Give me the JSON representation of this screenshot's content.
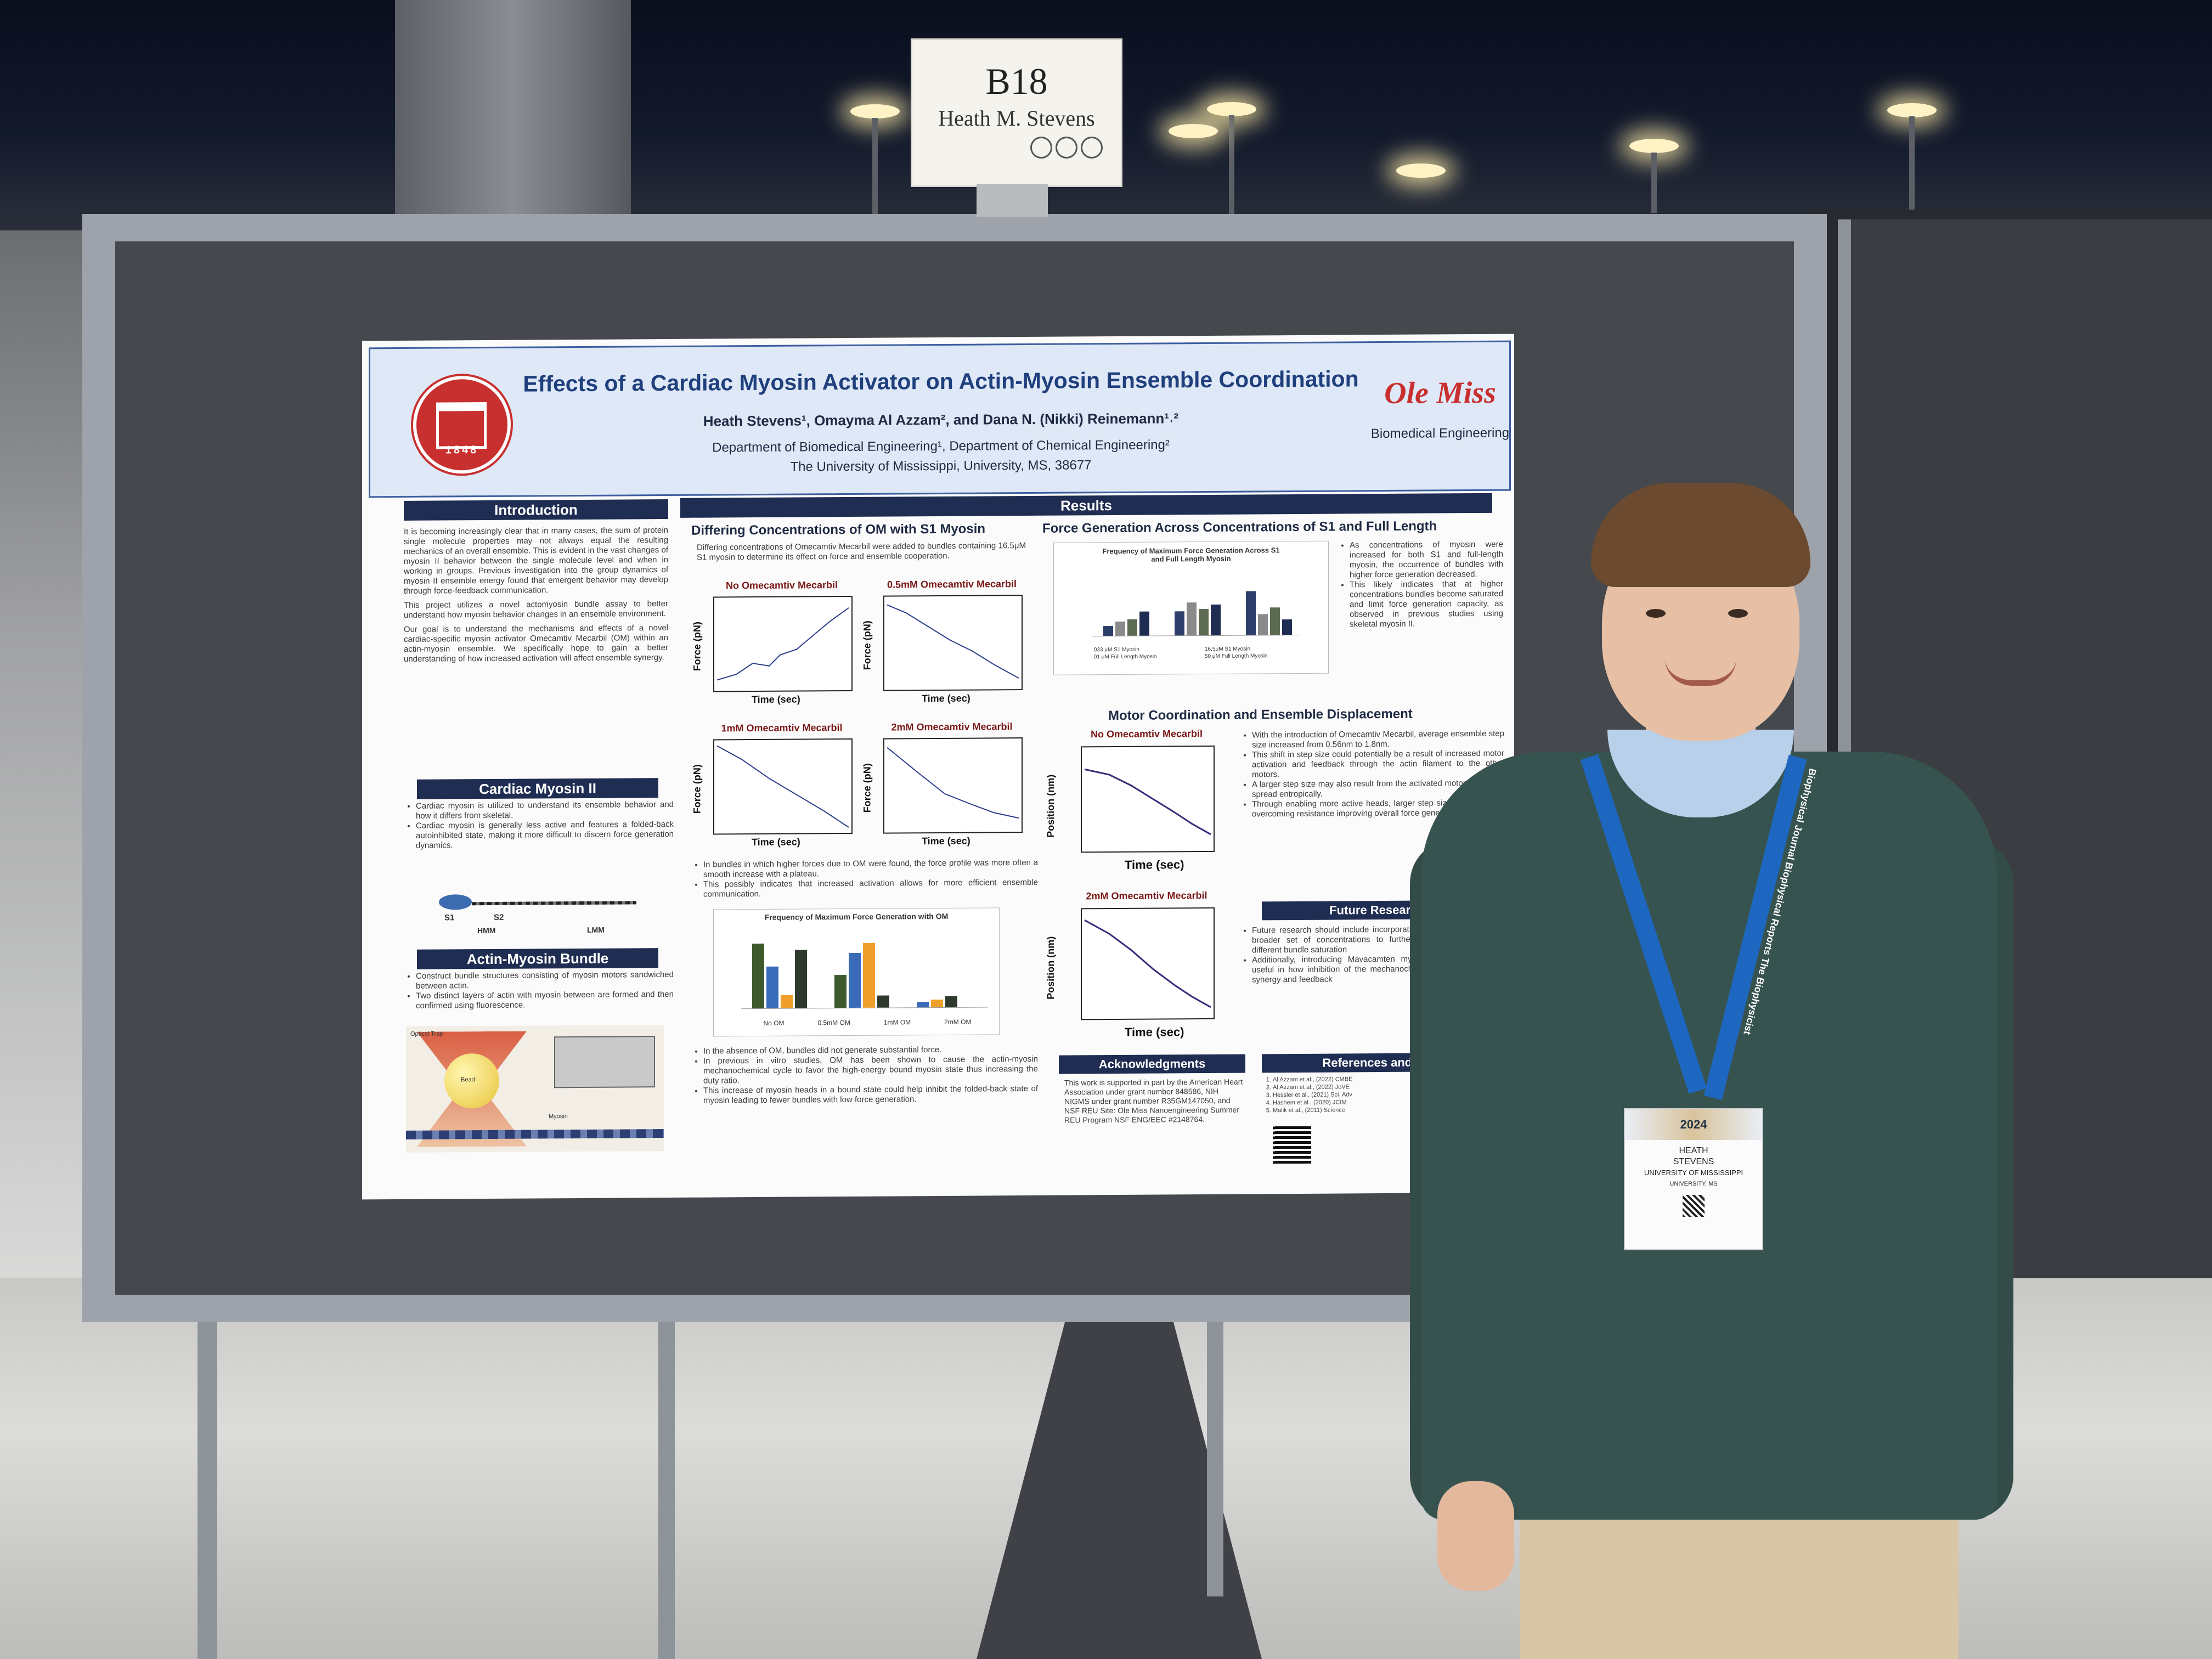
{
  "sign": {
    "booth_id": "B18",
    "presenter": "Heath M. Stevens"
  },
  "poster": {
    "title": "Effects of a Cardiac Myosin Activator on Actin-Myosin Ensemble Coordination",
    "authors": "Heath Stevens¹, Omayma Al Azzam², and Dana N. (Nikki) Reinemann¹˒²",
    "departments": "Department of Biomedical Engineering¹, Department of Chemical Engineering²",
    "university": "The University of Mississippi, University, MS, 38677",
    "seal_year": "1848",
    "logo_text": "Ole Miss",
    "logo_subtitle": "Biomedical Engineering",
    "introduction": {
      "heading": "Introduction",
      "paragraphs": [
        "It is becoming increasingly clear that in many cases, the sum of protein single molecule properties may not always equal the resulting mechanics of an overall ensemble. This is evident in the vast changes of myosin II behavior between the single molecule level and when in working in groups. Previous investigation into the group dynamics of myosin II ensemble energy found that emergent behavior may develop through force-feedback communication.",
        "This project utilizes a novel actomyosin bundle assay to better understand how myosin behavior changes in an ensemble environment.",
        "Our goal is to understand the mechanisms and effects of a novel cardiac-specific myosin activator Omecamtiv Mecarbil (OM) within an actin-myosin ensemble. We specifically hope to gain a better understanding of how increased activation will affect ensemble synergy."
      ]
    },
    "cardiac_myosin": {
      "heading": "Cardiac Myosin II",
      "bullets": [
        "Cardiac myosin is utilized to understand its ensemble behavior and how it differs from skeletal.",
        "Cardiac myosin is generally less active and features a folded-back autoinhibited state, making it more difficult to discern force generation dynamics."
      ],
      "labels": [
        "S1",
        "S2",
        "HMM",
        "LMM"
      ]
    },
    "bundle": {
      "heading": "Actin-Myosin Bundle",
      "bullets": [
        "Construct bundle structures consisting of myosin motors sandwiched between actin.",
        "Two distinct layers of actin with myosin between are formed and then confirmed using fluorescence."
      ],
      "labels": [
        "Optical Trap",
        "Bead",
        "Myosin"
      ]
    },
    "results": {
      "heading": "Results",
      "om_heading": "Differing Concentrations of OM with S1 Myosin",
      "om_text": "Differing concentrations of Omecamtiv Mecarbil were added to bundles containing 16.5μM S1 myosin to determine its effect on force and ensemble cooperation.",
      "traces": [
        {
          "title": "No Omecamtiv Mecarbil",
          "ylabel": "Force (pN)",
          "xlabel": "Time (sec)"
        },
        {
          "title": "0.5mM Omecamtiv Mecarbil",
          "ylabel": "Force (pN)",
          "xlabel": "Time (sec)"
        },
        {
          "title": "1mM Omecamtiv Mecarbil",
          "ylabel": "Force (pN)",
          "xlabel": "Time (sec)"
        },
        {
          "title": "2mM Omecamtiv Mecarbil",
          "ylabel": "Force (pN)",
          "xlabel": "Time (sec)"
        }
      ],
      "om_bullets": [
        "In bundles in which higher forces due to OM were found, the force profile was more often a smooth increase with a plateau.",
        "This possibly indicates that increased activation allows for more efficient ensemble communication."
      ],
      "freq_chart_title": "Frequency of Maximum Force Generation with OM",
      "freq_chart_legend": [
        "No OM",
        "0.5mM OM",
        "1mM OM",
        "2mM OM"
      ],
      "om_bullets_2": [
        "In the absence of OM, bundles did not generate substantial force.",
        "In previous in vitro studies, OM has been shown to cause the actin-myosin mechanochemical cycle to favor the high-energy bound myosin state thus increasing the duty ratio.",
        "This increase of myosin heads in a bound state could help inhibit the folded-back state of myosin leading to fewer bundles with low force generation."
      ],
      "fg_heading": "Force Generation Across Concentrations of S1 and Full Length",
      "fg_chart_title": "Frequency of Maximum Force Generation Across S1 and Full Length Myosin",
      "fg_legend": [
        ".033 μM S1 Myosin",
        "16.5μM S1 Myosin",
        ".01 μM Full Length Myosin",
        "50 μM Full Length Myosin"
      ],
      "fg_bullets": [
        "As concentrations of myosin were increased for both S1 and full-length myosin, the occurrence of bundles with higher force generation decreased.",
        "This likely indicates that at higher concentrations bundles become saturated and limit force generation capacity, as observed in previous studies using skeletal myosin II."
      ],
      "motor_heading": "Motor Coordination and Ensemble Displacement",
      "pos_traces": [
        {
          "title": "No Omecamtiv Mecarbil",
          "ylabel": "Position (nm)",
          "xlabel": "Time (sec)"
        },
        {
          "title": "2mM Omecamtiv Mecarbil",
          "ylabel": "Position (nm)",
          "xlabel": "Time (sec)"
        }
      ],
      "motor_bullets": [
        "With the introduction of Omecamtiv Mecarbil, average ensemble step size increased from 0.56nm to 1.8nm.",
        "This shift in step size could potentially be a result of increased motor activation and feedback through the actin filament to the other motors.",
        "A larger step size may also result from the activated motors' ability to spread entropically.",
        "Through enabling more active heads, larger step sizes contribute to overcoming resistance improving overall force generation."
      ]
    },
    "future": {
      "heading": "Future Research",
      "bullets": [
        "Future research should include incorporating OM in assays over a broader set of concentrations to further elucidate changes as different bundle saturation",
        "Additionally, introducing Mavacamten myosin inhibitor, could be useful in how inhibition of the mechanochemical affects ensemble synergy and feedback"
      ]
    },
    "acknowledgments": {
      "heading": "Acknowledgments",
      "text": "This work is supported in part by the American Heart Association under grant number 848586, NIH NIGMS under grant number R35GM147050, and NSF REU Site: Ole Miss Nanoengineering Summer REU Program NSF ENG/EEC #2148764."
    },
    "references": {
      "heading": "References and Co",
      "items": [
        "Al Azzam et al., (2022) CMBE",
        "Al Azzam et al., (2022) JoVE",
        "Hessler et al., (2021) Sci. Adv",
        "Hashem et al., (2020) JCIM",
        "Malik et al., (2011) Science"
      ]
    }
  },
  "badge": {
    "top": "2024",
    "first_name": "HEATH",
    "last_name": "STEVENS",
    "affiliation": "UNIVERSITY OF MISSISSIPPI",
    "location": "UNIVERSITY, MS"
  },
  "lanyard_text": "Biophysical Journal  Biophysical Reports  The Biophysicist",
  "colors": {
    "poster_navy": "#1f2d52",
    "ole_miss_red": "#c8302f",
    "sweater": "#37534f",
    "lanyard": "#1d67c0"
  }
}
